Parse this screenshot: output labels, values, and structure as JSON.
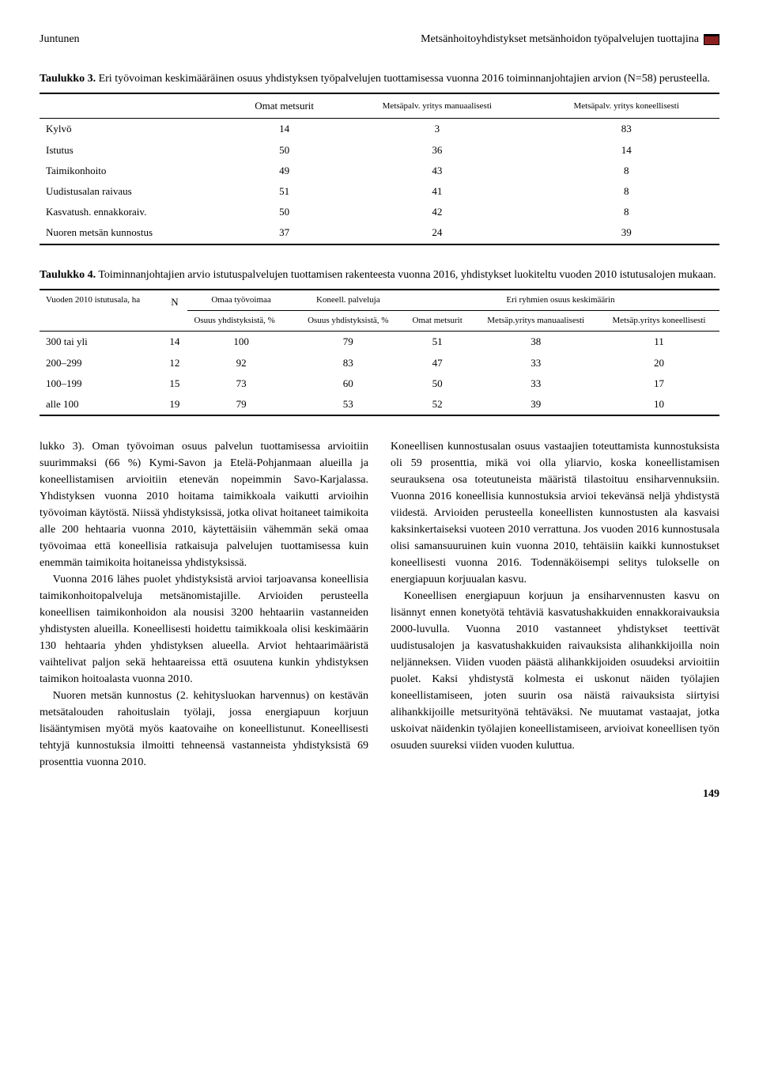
{
  "header": {
    "left": "Juntunen",
    "right": "Metsänhoitoyhdistykset metsänhoidon työpalvelujen tuottajina"
  },
  "table3": {
    "caption_label": "Taulukko 3.",
    "caption_text": " Eri työvoiman keskimääräinen osuus yhdistyksen työpalvelujen tuottamisessa vuonna 2016 toiminnanjohtajien arvion (N=58) perusteella.",
    "col_headers": [
      "",
      "Omat metsurit",
      "Metsäpalv. yritys manuaalisesti",
      "Metsäpalv. yritys koneellisesti"
    ],
    "rows": [
      {
        "label": "Kylvö",
        "c1": "14",
        "c2": "3",
        "c3": "83"
      },
      {
        "label": "Istutus",
        "c1": "50",
        "c2": "36",
        "c3": "14"
      },
      {
        "label": "Taimikonhoito",
        "c1": "49",
        "c2": "43",
        "c3": "8"
      },
      {
        "label": "Uudistusalan raivaus",
        "c1": "51",
        "c2": "41",
        "c3": "8"
      },
      {
        "label": "Kasvatush. ennakkoraiv.",
        "c1": "50",
        "c2": "42",
        "c3": "8"
      },
      {
        "label": "Nuoren metsän kunnostus",
        "c1": "37",
        "c2": "24",
        "c3": "39"
      }
    ]
  },
  "table4": {
    "caption_label": "Taulukko 4.",
    "caption_text": " Toiminnanjohtajien arvio istutuspalvelujen tuottamisen rakenteesta vuonna 2016, yhdistykset luokiteltu vuoden 2010 istutusalojen mukaan.",
    "header_row1": [
      "Vuoden 2010 istutusala, ha",
      "N",
      "Omaa työvoimaa",
      "Koneell. palveluja",
      "Eri ryhmien osuus keskimäärin"
    ],
    "header_row2_c3": "Osuus yhdistyksistä, %",
    "header_row2_c4": "Osuus yhdistyksistä, %",
    "header_row2_c5": "Omat metsurit",
    "header_row2_c6": "Metsäp.yritys manuaalisesti",
    "header_row2_c7": "Metsäp.yritys koneellisesti",
    "rows": [
      {
        "label": "300 tai yli",
        "n": "14",
        "c3": "100",
        "c4": "79",
        "c5": "51",
        "c6": "38",
        "c7": "11"
      },
      {
        "label": "200–299",
        "n": "12",
        "c3": "92",
        "c4": "83",
        "c5": "47",
        "c6": "33",
        "c7": "20"
      },
      {
        "label": "100–199",
        "n": "15",
        "c3": "73",
        "c4": "60",
        "c5": "50",
        "c6": "33",
        "c7": "17"
      },
      {
        "label": "alle 100",
        "n": "19",
        "c3": "79",
        "c4": "53",
        "c5": "52",
        "c6": "39",
        "c7": "10"
      }
    ]
  },
  "body": {
    "p1": "lukko 3). Oman työvoiman osuus palvelun tuottamisessa arvioitiin suurimmaksi (66 %) Kymi-Savon ja Etelä-Pohjanmaan alueilla ja koneellistamisen arvioitiin etenevän nopeimmin Savo-Karjalassa. Yhdistyksen vuonna 2010 hoitama taimikkoala vaikutti arvioihin työvoiman käytöstä. Niissä yhdistyksissä, jotka olivat hoitaneet taimikoita alle 200 hehtaaria vuonna 2010, käytettäisiin vähemmän sekä omaa työvoimaa että koneellisia ratkaisuja palvelujen tuottamisessa kuin enemmän taimikoita hoitaneissa yhdistyksissä.",
    "p2": "Vuonna 2016 lähes puolet yhdistyksistä arvioi tarjoavansa koneellisia taimikonhoitopalveluja metsänomistajille. Arvioiden perusteella koneellisen taimikonhoidon ala nousisi 3200 hehtaariin vastanneiden yhdistysten alueilla. Koneellisesti hoidettu taimikkoala olisi keskimäärin 130 hehtaaria yhden yhdistyksen alueella. Arviot hehtaarimääristä vaihtelivat paljon sekä hehtaareissa että osuutena kunkin yhdistyksen taimikon hoitoalasta vuonna 2010.",
    "p3": "Nuoren metsän kunnostus (2. kehitysluokan harvennus) on kestävän metsätalouden rahoituslain työlaji, jossa energiapuun korjuun lisääntymisen myötä myös kaatovaihe on koneellistunut. Koneellisesti tehtyjä kunnostuksia ilmoitti tehneensä vastanneista yhdistyksistä 69 prosenttia vuonna 2010.",
    "p4": "Koneellisen kunnostusalan osuus vastaajien toteuttamista kunnostuksista oli 59 prosenttia, mikä voi olla yliarvio, koska koneellistamisen seurauksena osa toteutuneista määristä tilastoituu ensiharvennuksiin. Vuonna 2016 koneellisia kunnostuksia arvioi tekevänsä neljä yhdistystä viidestä. Arvioiden perusteella koneellisten kunnostusten ala kasvaisi kaksinkertaiseksi vuoteen 2010 verrattuna. Jos vuoden 2016 kunnostusala olisi samansuuruinen kuin vuonna 2010, tehtäisiin kaikki kunnostukset koneellisesti vuonna 2016. Todennäköisempi selitys tulokselle on energiapuun korjuualan kasvu.",
    "p5": "Koneellisen energiapuun korjuun ja ensiharvennusten kasvu on lisännyt ennen konetyötä tehtäviä kasvatushakkuiden ennakkoraivauksia 2000-luvulla. Vuonna 2010 vastanneet yhdistykset teettivät uudistusalojen ja kasvatushakkuiden raivauksista alihankkijoilla noin neljänneksen. Viiden vuoden päästä alihankkijoiden osuudeksi arvioitiin puolet. Kaksi yhdistystä kolmesta ei uskonut näiden työlajien koneellistamiseen, joten suurin osa näistä raivauksista siirtyisi alihankkijoille metsurityönä tehtäväksi. Ne muutamat vastaajat, jotka uskoivat näidenkin työlajien koneellistamiseen, arvioivat koneellisen työn osuuden suureksi viiden vuoden kuluttua."
  },
  "page_number": "149"
}
